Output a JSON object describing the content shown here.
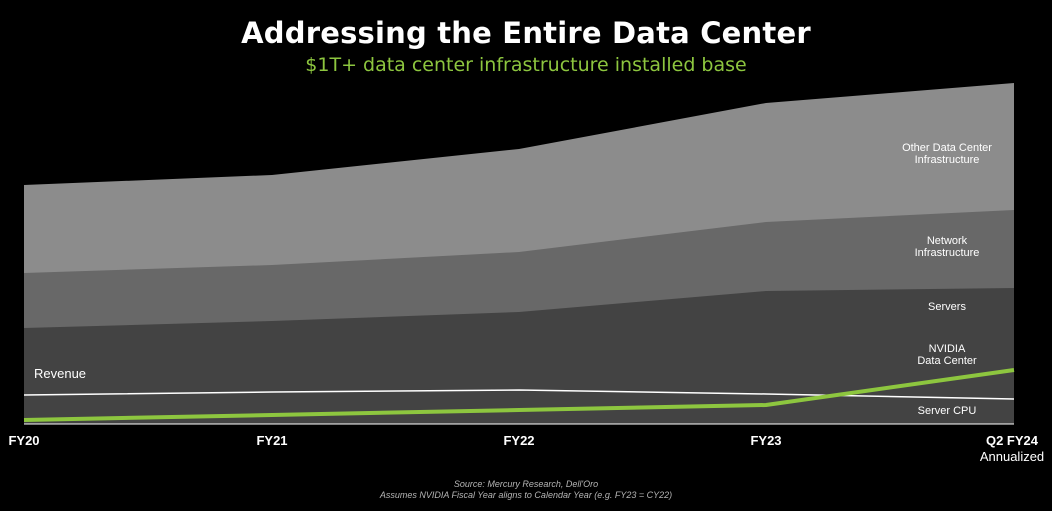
{
  "chart_data": {
    "type": "area",
    "title": "Addressing the Entire Data Center",
    "subtitle": "$1T+ data center infrastructure installed base",
    "categories": [
      "FY20",
      "FY21",
      "FY22",
      "FY23",
      "Q2 FY24"
    ],
    "category_sublabel": "Annualized",
    "series": [
      {
        "name": "Servers",
        "values": [
          96,
          103,
          112,
          133,
          136
        ],
        "color": "#434343"
      },
      {
        "name": "Network Infrastructure",
        "values": [
          151,
          159,
          172,
          202,
          214
        ],
        "color": "#686868"
      },
      {
        "name": "Other Data Center Infrastructure",
        "values": [
          239,
          249,
          275,
          321,
          341
        ],
        "color": "#8c8c8c"
      }
    ],
    "lines": [
      {
        "name": "Revenue",
        "values": [
          29,
          32,
          34,
          30,
          25
        ],
        "color": "#ffffff"
      },
      {
        "name": "NVIDIA Data Center",
        "values": [
          4,
          9,
          14,
          19,
          54
        ],
        "color": "#8dc63f"
      }
    ],
    "layer_labels": {
      "other": [
        "Other Data Center",
        "Infrastructure"
      ],
      "network": [
        "Network",
        "Infrastructure"
      ],
      "servers": "Servers",
      "nvidia": [
        "NVIDIA",
        "Data Center"
      ],
      "server_cpu": "Server CPU"
    },
    "ylim": [
      0,
      350
    ],
    "grid": false,
    "legend": "inline-right"
  },
  "source": {
    "line1": "Source: Mercury Research, Dell'Oro",
    "line2": "Assumes NVIDIA Fiscal Year aligns to Calendar Year (e.g. FY23 = CY22)"
  }
}
